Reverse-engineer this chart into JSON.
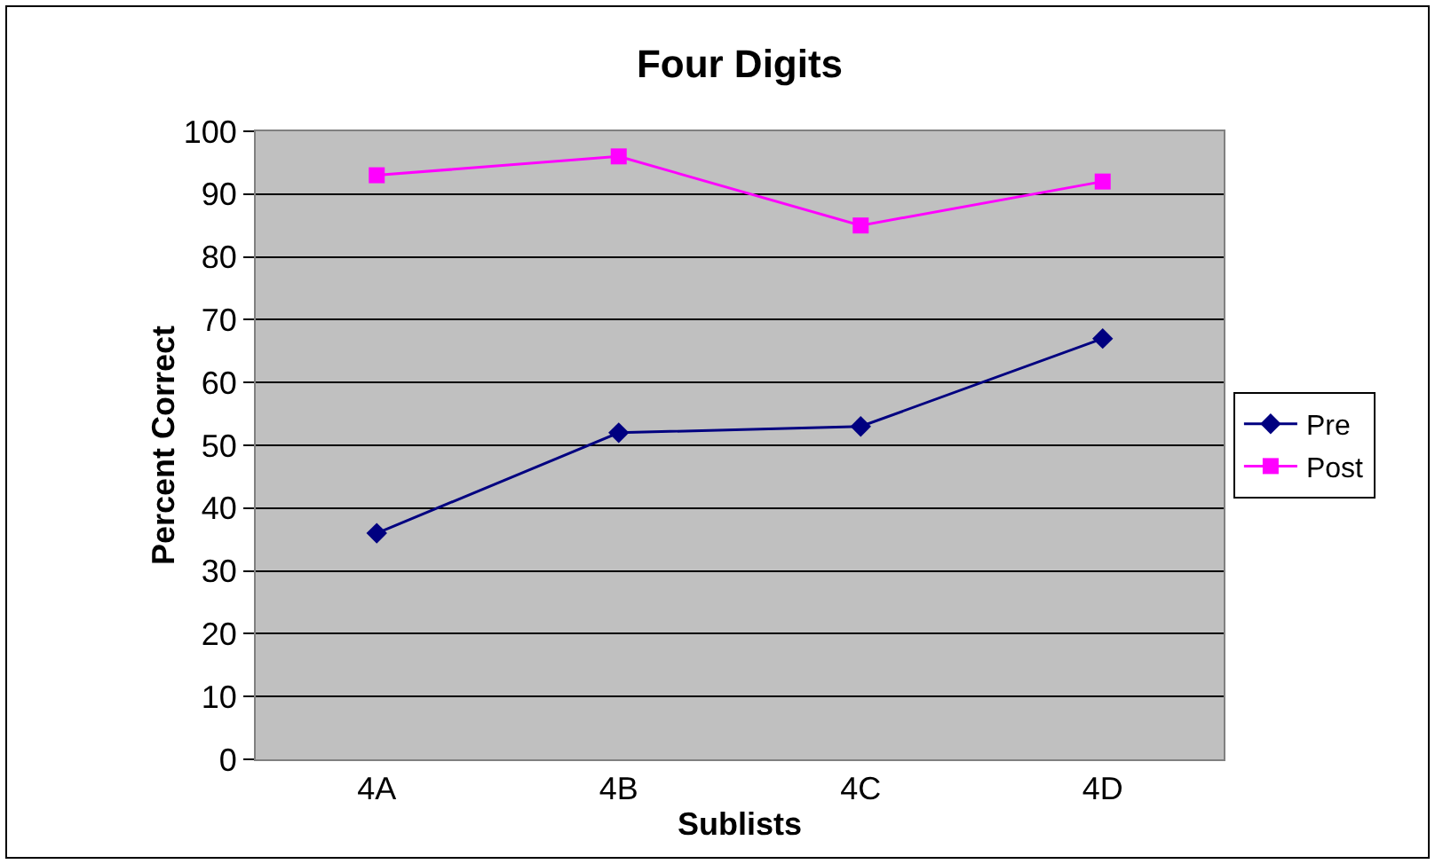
{
  "chart_data": {
    "type": "line",
    "title": "Four Digits",
    "xlabel": "Sublists",
    "ylabel": "Percent Correct",
    "categories": [
      "4A",
      "4B",
      "4C",
      "4D"
    ],
    "series": [
      {
        "name": "Pre",
        "color": "#000080",
        "marker": "diamond",
        "values": [
          36,
          52,
          53,
          67
        ]
      },
      {
        "name": "Post",
        "color": "#ff00ff",
        "marker": "square",
        "values": [
          93,
          96,
          85,
          92
        ]
      }
    ],
    "ylim": [
      0,
      100
    ],
    "yticks": [
      0,
      10,
      20,
      30,
      40,
      50,
      60,
      70,
      80,
      90,
      100
    ],
    "grid": "y",
    "legend": "right",
    "line_style": "solid"
  }
}
